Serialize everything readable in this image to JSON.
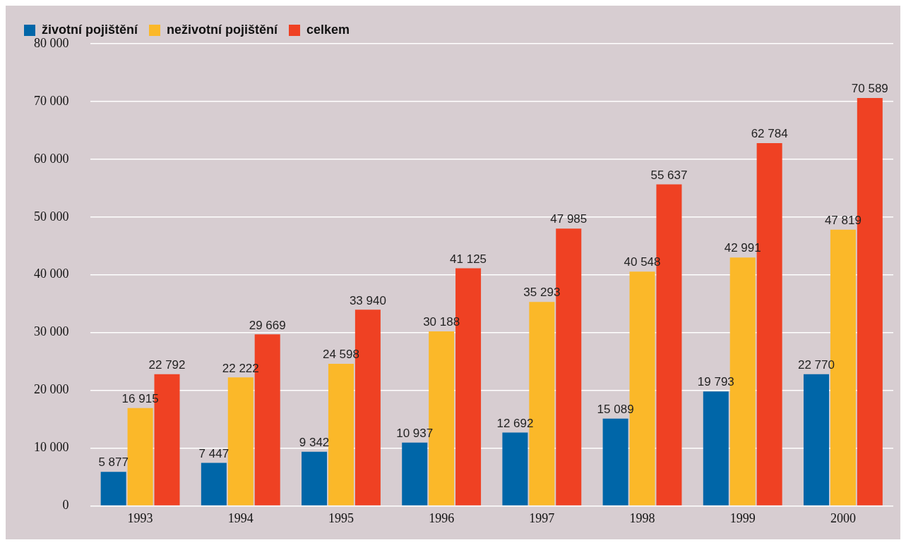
{
  "chart_data": {
    "type": "bar",
    "categories": [
      "1993",
      "1994",
      "1995",
      "1996",
      "1997",
      "1998",
      "1999",
      "2000"
    ],
    "series": [
      {
        "name": "životní pojištění",
        "color": "#0066a8",
        "values": [
          5877,
          7447,
          9342,
          10937,
          12692,
          15089,
          19793,
          22770
        ],
        "value_labels": [
          "5 877",
          "7 447",
          "9 342",
          "10 937",
          "12 692",
          "15 089",
          "19 793",
          "22 770"
        ]
      },
      {
        "name": "neživotní pojištění",
        "color": "#fbb829",
        "values": [
          16915,
          22222,
          24598,
          30188,
          35293,
          40548,
          42991,
          47819
        ],
        "value_labels": [
          "16 915",
          "22 222",
          "24 598",
          "30 188",
          "35 293",
          "40 548",
          "42 991",
          "47 819"
        ]
      },
      {
        "name": "celkem",
        "color": "#ef4123",
        "values": [
          22792,
          29669,
          33940,
          41125,
          47985,
          55637,
          62784,
          70589
        ],
        "value_labels": [
          "22 792",
          "29 669",
          "33 940",
          "41 125",
          "47 985",
          "55 637",
          "62 784",
          "70 589"
        ]
      }
    ],
    "ylim": [
      0,
      80000
    ],
    "yticks": [
      {
        "value": 0,
        "label": "0"
      },
      {
        "value": 10000,
        "label": "10 000"
      },
      {
        "value": 20000,
        "label": "20 000"
      },
      {
        "value": 30000,
        "label": "30 000"
      },
      {
        "value": 40000,
        "label": "40 000"
      },
      {
        "value": 50000,
        "label": "50 000"
      },
      {
        "value": 60000,
        "label": "60 000"
      },
      {
        "value": 70000,
        "label": "70 000"
      },
      {
        "value": 80000,
        "label": "80 000"
      }
    ],
    "grid": "y",
    "legend": "top left"
  }
}
